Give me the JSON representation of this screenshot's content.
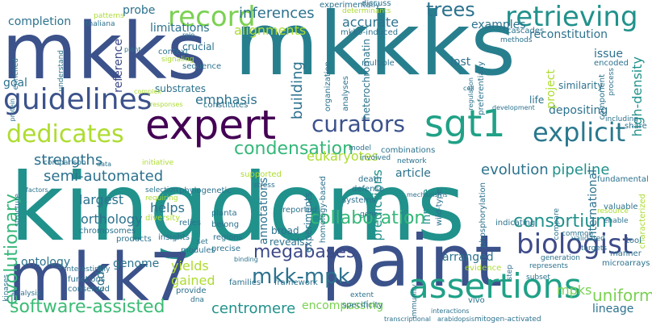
{
  "words": [
    {
      "text": "kingdoms",
      "color": "#21918c"
    },
    {
      "text": "mkks",
      "color": "#3b528b"
    },
    {
      "text": "mkkks",
      "color": "#277f8e"
    },
    {
      "text": "paint",
      "color": "#3b528b"
    },
    {
      "text": "mkk7",
      "color": "#3b528b"
    },
    {
      "text": "expert",
      "color": "#440154"
    },
    {
      "text": "assertions",
      "color": "#1fa187"
    },
    {
      "text": "sgt1",
      "color": "#1fa187"
    },
    {
      "text": "guidelines",
      "color": "#3b528b"
    },
    {
      "text": "biologist",
      "color": "#3e4a89"
    },
    {
      "text": "record",
      "color": "#7ad151"
    },
    {
      "text": "retrieving",
      "color": "#21918c"
    },
    {
      "text": "dedicates",
      "color": "#addc30"
    },
    {
      "text": "curators",
      "color": "#3b528b"
    },
    {
      "text": "explicit",
      "color": "#2a788e"
    },
    {
      "text": "mkk-mpk",
      "color": "#2c728e"
    },
    {
      "text": "condensation",
      "color": "#35b779"
    },
    {
      "text": "software-assisted",
      "color": "#3bbb75"
    },
    {
      "text": "megabases",
      "color": "#3e4a89"
    },
    {
      "text": "collaboration",
      "color": "#35b779"
    },
    {
      "text": "consortium",
      "color": "#21918c"
    },
    {
      "text": "evolutionary",
      "color": "#35b779"
    },
    {
      "text": "trees",
      "color": "#2c728e"
    },
    {
      "text": "inferences",
      "color": "#2c728e"
    },
    {
      "text": "strengths",
      "color": "#2c728e"
    },
    {
      "text": "semi-automated",
      "color": "#2c728e"
    },
    {
      "text": "evolution",
      "color": "#2c728e"
    },
    {
      "text": "pipeline",
      "color": "#21918c"
    },
    {
      "text": "eukaryotes",
      "color": "#addc30"
    },
    {
      "text": "centromere",
      "color": "#21918c"
    },
    {
      "text": "uniform",
      "color": "#7ad151"
    },
    {
      "text": "mpks",
      "color": "#7ad151"
    },
    {
      "text": "lineage",
      "color": "#2c728e"
    },
    {
      "text": "emphasis",
      "color": "#2c728e"
    },
    {
      "text": "building",
      "color": "#2c728e"
    },
    {
      "text": "accurate",
      "color": "#2c728e"
    },
    {
      "text": "reconstitution",
      "color": "#2c728e"
    },
    {
      "text": "examples",
      "color": "#2c728e"
    },
    {
      "text": "alignments",
      "color": "#addc30"
    },
    {
      "text": "limitations",
      "color": "#2c728e"
    },
    {
      "text": "completion",
      "color": "#2c728e"
    },
    {
      "text": "goal",
      "color": "#2c728e"
    },
    {
      "text": "probe",
      "color": "#2c728e"
    },
    {
      "text": "depositing",
      "color": "#2c728e"
    },
    {
      "text": "high-density",
      "color": "#21918c"
    },
    {
      "text": "largest",
      "color": "#2c728e"
    },
    {
      "text": "helps",
      "color": "#2c728e"
    },
    {
      "text": "orthology",
      "color": "#2c728e"
    },
    {
      "text": "ontology",
      "color": "#2c728e"
    },
    {
      "text": "genome",
      "color": "#2c728e"
    },
    {
      "text": "yields",
      "color": "#addc30"
    },
    {
      "text": "gained",
      "color": "#addc30"
    },
    {
      "text": "code",
      "color": "#2c728e"
    },
    {
      "text": "arranged",
      "color": "#2c728e"
    },
    {
      "text": "encompassing",
      "color": "#7ad151"
    },
    {
      "text": "article",
      "color": "#2c728e"
    },
    {
      "text": "annotations",
      "color": "#2c728e"
    },
    {
      "text": "predictions",
      "color": "#21918c"
    },
    {
      "text": "heterochromatin",
      "color": "#2c728e"
    },
    {
      "text": "innate",
      "color": "#21918c"
    },
    {
      "text": "international",
      "color": "#2c728e"
    },
    {
      "text": "project",
      "color": "#addc30"
    },
    {
      "text": "issue",
      "color": "#2c728e"
    },
    {
      "text": "reference",
      "color": "#3e4a89"
    },
    {
      "text": "lost",
      "color": "#2c728e"
    },
    {
      "text": "experiments",
      "color": "#2c728e"
    },
    {
      "text": "reveals",
      "color": "#2c728e"
    },
    {
      "text": "broad",
      "color": "#2c728e"
    },
    {
      "text": "gene",
      "color": "#2c728e"
    },
    {
      "text": "crucial",
      "color": "#2c728e"
    },
    {
      "text": "mkk9-induced",
      "color": "#2c728e"
    },
    {
      "text": "experimentally",
      "color": "#2c728e"
    },
    {
      "text": "determinants",
      "color": "#addc30"
    },
    {
      "text": "discuss",
      "color": "#2c728e"
    },
    {
      "text": "mechanisms",
      "color": "#2c728e"
    },
    {
      "text": "cascades",
      "color": "#2c728e"
    },
    {
      "text": "methods",
      "color": "#2c728e"
    },
    {
      "text": "context",
      "color": "#2c728e"
    },
    {
      "text": "signaling",
      "color": "#addc30"
    },
    {
      "text": "sequence",
      "color": "#2c728e"
    },
    {
      "text": "substrates",
      "color": "#2c728e"
    },
    {
      "text": "constitutes",
      "color": "#2c728e"
    },
    {
      "text": "organization",
      "color": "#2c728e"
    },
    {
      "text": "analyses",
      "color": "#2c728e"
    },
    {
      "text": "multiple",
      "color": "#2c728e"
    },
    {
      "text": "preferentially",
      "color": "#2c728e"
    },
    {
      "text": "regulation",
      "color": "#2c728e"
    },
    {
      "text": "similarity",
      "color": "#2c728e"
    },
    {
      "text": "encoded",
      "color": "#2c728e"
    },
    {
      "text": "component",
      "color": "#2c728e"
    },
    {
      "text": "process",
      "color": "#2c728e"
    },
    {
      "text": "life",
      "color": "#2c728e"
    },
    {
      "text": "share",
      "color": "#2c728e"
    },
    {
      "text": "including",
      "color": "#2c728e"
    },
    {
      "text": "development",
      "color": "#2c728e"
    },
    {
      "text": "involved",
      "color": "#2c728e"
    },
    {
      "text": "combinations",
      "color": "#2c728e"
    },
    {
      "text": "network",
      "color": "#2c728e"
    },
    {
      "text": "model",
      "color": "#2c728e"
    },
    {
      "text": "fundamental",
      "color": "#2c728e"
    },
    {
      "text": "valuable",
      "color": "#2c728e"
    },
    {
      "text": "characterized",
      "color": "#addc30"
    },
    {
      "text": "resource",
      "color": "#addc30"
    },
    {
      "text": "enable",
      "color": "#2c728e"
    },
    {
      "text": "tool",
      "color": "#2c728e"
    },
    {
      "text": "compare",
      "color": "#2c728e"
    },
    {
      "text": "validated",
      "color": "#2c728e"
    },
    {
      "text": "common",
      "color": "#2c728e"
    },
    {
      "text": "targets",
      "color": "#2c728e"
    },
    {
      "text": "manner",
      "color": "#2c728e"
    },
    {
      "text": "microarrays",
      "color": "#2c728e"
    },
    {
      "text": "represents",
      "color": "#2c728e"
    },
    {
      "text": "subset",
      "color": "#2c728e"
    },
    {
      "text": "generation",
      "color": "#2c728e"
    },
    {
      "text": "step",
      "color": "#2c728e"
    },
    {
      "text": "mitogen-activated",
      "color": "#2c728e"
    },
    {
      "text": "arabidopsis",
      "color": "#2c728e"
    },
    {
      "text": "transcriptional",
      "color": "#2c728e"
    },
    {
      "text": "interactions",
      "color": "#2c728e"
    },
    {
      "text": "immunity",
      "color": "#2c728e"
    },
    {
      "text": "specificity",
      "color": "#2c728e"
    },
    {
      "text": "extent",
      "color": "#2c728e"
    },
    {
      "text": "dna",
      "color": "#2c728e"
    },
    {
      "text": "families",
      "color": "#2c728e"
    },
    {
      "text": "provide",
      "color": "#2c728e"
    },
    {
      "text": "modules",
      "color": "#2c728e"
    },
    {
      "text": "framework",
      "color": "#2c728e"
    },
    {
      "text": "binding",
      "color": "#2c728e"
    },
    {
      "text": "precise",
      "color": "#2c728e"
    },
    {
      "text": "set",
      "color": "#2c728e"
    },
    {
      "text": "regions",
      "color": "#2c728e"
    },
    {
      "text": "belong",
      "color": "#2c728e"
    },
    {
      "text": "planta",
      "color": "#2c728e"
    },
    {
      "text": "relies",
      "color": "#2c728e"
    },
    {
      "text": "insights",
      "color": "#2c728e"
    },
    {
      "text": "products",
      "color": "#2c728e"
    },
    {
      "text": "chromosomes",
      "color": "#2c728e"
    },
    {
      "text": "functions",
      "color": "#2c728e"
    },
    {
      "text": "conserved",
      "color": "#2c728e"
    },
    {
      "text": "analysis",
      "color": "#2c728e"
    },
    {
      "text": "interestingly",
      "color": "#2c728e"
    },
    {
      "text": "kinases",
      "color": "#2c728e"
    },
    {
      "text": "structure",
      "color": "#2c728e"
    },
    {
      "text": "factors",
      "color": "#2c728e"
    },
    {
      "text": "comparison",
      "color": "#2c728e"
    },
    {
      "text": "data",
      "color": "#2c728e"
    },
    {
      "text": "initiative",
      "color": "#addc30"
    },
    {
      "text": "phylogenetic",
      "color": "#2c728e"
    },
    {
      "text": "selection",
      "color": "#2c728e"
    },
    {
      "text": "requiring",
      "color": "#addc30"
    },
    {
      "text": "diversity",
      "color": "#addc30"
    },
    {
      "text": "supported",
      "color": "#addc30"
    },
    {
      "text": "stress",
      "color": "#2c728e"
    },
    {
      "text": "homology-based",
      "color": "#2c728e"
    },
    {
      "text": "reported",
      "color": "#2c728e"
    },
    {
      "text": "systems",
      "color": "#2c728e"
    },
    {
      "text": "death",
      "color": "#2c728e"
    },
    {
      "text": "defense",
      "color": "#2c728e"
    },
    {
      "text": "wild-type",
      "color": "#2c728e"
    },
    {
      "text": "phosphorylation",
      "color": "#2c728e"
    },
    {
      "text": "indicating",
      "color": "#2c728e"
    },
    {
      "text": "evidence",
      "color": "#addc30"
    },
    {
      "text": "vivo",
      "color": "#2c728e"
    },
    {
      "text": "cell",
      "color": "#2c728e"
    },
    {
      "text": "enriched",
      "color": "#2c728e"
    },
    {
      "text": "understand",
      "color": "#2c728e"
    },
    {
      "text": "thaliana",
      "color": "#2c728e"
    },
    {
      "text": "patterns",
      "color": "#addc30"
    },
    {
      "text": "plant",
      "color": "#2c728e"
    },
    {
      "text": "role",
      "color": "#2c728e"
    },
    {
      "text": "protein",
      "color": "#2c728e"
    },
    {
      "text": "responses",
      "color": "#addc30"
    },
    {
      "text": "complex",
      "color": "#addc30"
    }
  ]
}
